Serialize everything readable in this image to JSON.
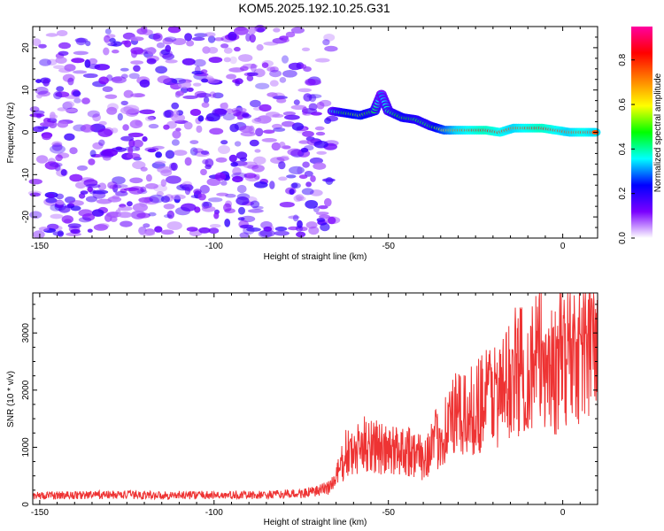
{
  "title": "KOM5.2025.192.10.25.G31",
  "chart_data": [
    {
      "type": "heatmap",
      "xlabel": "Height of straight line (km)",
      "ylabel": "Frequency (Hz)",
      "xlim": [
        -152,
        10
      ],
      "ylim": [
        -25,
        25
      ],
      "xticks": [
        -150,
        -100,
        -50,
        0
      ],
      "yticks": [
        -20,
        -10,
        0,
        10,
        20
      ],
      "colorbar": {
        "label": "Normalized spectral amplitude",
        "range": [
          0,
          0.95
        ],
        "ticks": [
          0,
          0.2,
          0.4,
          0.6,
          0.8
        ],
        "tick_labels": [
          "0.0",
          "0.2",
          "0.4",
          "0.6",
          "0.8"
        ],
        "colormap": [
          "#ffffff",
          "#7a00ff",
          "#0000ff",
          "#00ffff",
          "#00ff00",
          "#ffff00",
          "#ff8000",
          "#ff0000",
          "#ff00a0"
        ]
      },
      "noise_region": {
        "x": [
          -152,
          -66
        ],
        "y": [
          -25,
          25
        ],
        "amplitude": [
          0.05,
          0.2
        ]
      },
      "signal_track": [
        {
          "x": -66,
          "f": 5.0,
          "a": 0.35
        },
        {
          "x": -62,
          "f": 4.5,
          "a": 0.5
        },
        {
          "x": -58,
          "f": 4.0,
          "a": 0.55
        },
        {
          "x": -54,
          "f": 5.0,
          "a": 0.45
        },
        {
          "x": -52,
          "f": 9.0,
          "a": 0.3
        },
        {
          "x": -50,
          "f": 5.0,
          "a": 0.4
        },
        {
          "x": -46,
          "f": 3.5,
          "a": 0.5
        },
        {
          "x": -42,
          "f": 3.0,
          "a": 0.45
        },
        {
          "x": -38,
          "f": 1.5,
          "a": 0.45
        },
        {
          "x": -34,
          "f": 0.5,
          "a": 0.6
        },
        {
          "x": -30,
          "f": 0.5,
          "a": 0.75
        },
        {
          "x": -26,
          "f": 0.5,
          "a": 0.8
        },
        {
          "x": -22,
          "f": 0.5,
          "a": 0.85
        },
        {
          "x": -18,
          "f": 0.0,
          "a": 0.8
        },
        {
          "x": -14,
          "f": 1.0,
          "a": 0.75
        },
        {
          "x": -10,
          "f": 1.0,
          "a": 0.8
        },
        {
          "x": -6,
          "f": 1.0,
          "a": 0.85
        },
        {
          "x": -2,
          "f": 0.5,
          "a": 0.8
        },
        {
          "x": 2,
          "f": 0.0,
          "a": 0.75
        },
        {
          "x": 6,
          "f": 0.0,
          "a": 0.8
        },
        {
          "x": 10,
          "f": 0.0,
          "a": 0.75
        }
      ]
    },
    {
      "type": "line",
      "xlabel": "Height of straight line (km)",
      "ylabel": "SNR (10 * v/v)",
      "xlim": [
        -152,
        10
      ],
      "ylim": [
        0,
        3700
      ],
      "xticks": [
        -150,
        -100,
        -50,
        0
      ],
      "yticks": [
        0,
        1000,
        2000,
        3000
      ],
      "color": "#ee3333",
      "series": [
        {
          "x": [
            -152,
            -145,
            -135,
            -125,
            -115,
            -105,
            -95,
            -85,
            -75,
            -70,
            -66,
            -64,
            -62,
            -60,
            -58,
            -55,
            -52,
            -50,
            -48,
            -45,
            -42,
            -40,
            -38,
            -35,
            -32,
            -30,
            -28,
            -25,
            -22,
            -20,
            -18,
            -16,
            -14,
            -12,
            -10,
            -8,
            -6,
            -4,
            -2,
            0,
            2,
            4,
            6,
            8,
            10
          ],
          "y": [
            150,
            160,
            165,
            170,
            160,
            165,
            160,
            165,
            190,
            230,
            350,
            600,
            900,
            850,
            1000,
            1100,
            950,
            900,
            950,
            1000,
            850,
            800,
            1000,
            1200,
            1500,
            1550,
            1500,
            1700,
            1900,
            2000,
            1900,
            2100,
            2300,
            2400,
            2300,
            2500,
            2600,
            2450,
            2300,
            2600,
            2700,
            2750,
            2800,
            2850,
            2800
          ]
        }
      ]
    }
  ]
}
